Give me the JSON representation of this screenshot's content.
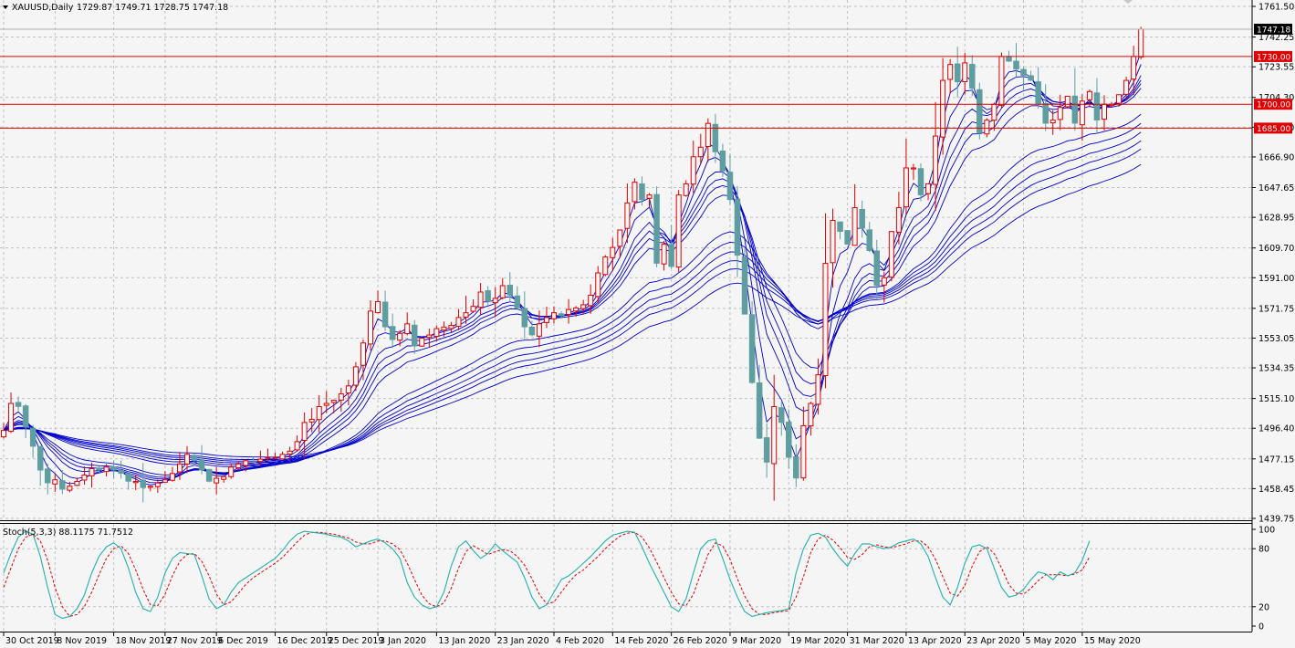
{
  "chart_data": [
    {
      "type": "candlestick",
      "symbol_header": "XAUUSD,Daily",
      "ohlc_header": "1729.87 1749.71 1728.75 1747.18",
      "ylim": [
        1439.75,
        1761.5
      ],
      "y_ticks": [
        1761.5,
        1742.25,
        1723.55,
        1704.3,
        1685.6,
        1666.9,
        1647.65,
        1628.95,
        1609.7,
        1591.0,
        1571.75,
        1553.05,
        1534.35,
        1515.1,
        1496.4,
        1477.15,
        1458.45,
        1439.75
      ],
      "y_tick_labels": [
        "1761.50",
        "1742.25",
        "1723.55",
        "1704.30",
        "1685.60",
        "1666.90",
        "1647.65",
        "1628.95",
        "1609.70",
        "1591.00",
        "1571.75",
        "1553.05",
        "1534.35",
        "1515.10",
        "1496.40",
        "1477.15",
        "1458.45",
        "1439.75"
      ],
      "x_tick_labels": [
        "30 Oct 2019",
        "8 Nov 2019",
        "18 Nov 2019",
        "27 Nov 2019",
        "6 Dec 2019",
        "16 Dec 2019",
        "25 Dec 2019",
        "3 Jan 2020",
        "13 Jan 2020",
        "23 Jan 2020",
        "4 Feb 2020",
        "14 Feb 2020",
        "26 Feb 2020",
        "9 Mar 2020",
        "19 Mar 2020",
        "31 Mar 2020",
        "13 Apr 2020",
        "23 Apr 2020",
        "5 May 2020",
        "15 May 2020"
      ],
      "x_tick_bars": [
        0,
        7,
        15,
        22,
        29,
        37,
        44,
        51,
        59,
        67,
        75,
        83,
        91,
        99,
        107,
        115,
        123,
        131,
        139,
        147
      ],
      "horizontal_levels": [
        {
          "value": 1730.0,
          "label": "1730.00",
          "color": "#e00000"
        },
        {
          "value": 1700.0,
          "label": "1700.00",
          "color": "#e00000"
        },
        {
          "value": 1685.0,
          "label": "1685.00",
          "color": "#e00000"
        }
      ],
      "current_price": {
        "value": 1747.18,
        "label": "1747.18"
      },
      "bull_color": "#e00000",
      "bear_color": "#5f9ea0",
      "ma_color": "#0000cc",
      "ma_periods": [
        3,
        5,
        8,
        10,
        12,
        15,
        30,
        35,
        40,
        45,
        50,
        60
      ],
      "close": [
        1495,
        1512,
        1510,
        1497,
        1485,
        1470,
        1462,
        1464,
        1458,
        1460,
        1463,
        1467,
        1471,
        1470,
        1472,
        1470,
        1468,
        1463,
        1463,
        1459,
        1460,
        1462,
        1464,
        1468,
        1474,
        1480,
        1476,
        1470,
        1463,
        1465,
        1466,
        1472,
        1474,
        1476,
        1475,
        1477,
        1478,
        1478,
        1480,
        1482,
        1488,
        1500,
        1502,
        1510,
        1512,
        1514,
        1518,
        1523,
        1535,
        1550,
        1570,
        1576,
        1560,
        1552,
        1556,
        1562,
        1548,
        1553,
        1555,
        1559,
        1560,
        1561,
        1566,
        1569,
        1573,
        1582,
        1576,
        1578,
        1586,
        1580,
        1572,
        1560,
        1555,
        1562,
        1566,
        1569,
        1567,
        1571,
        1572,
        1574,
        1580,
        1594,
        1604,
        1610,
        1621,
        1638,
        1651,
        1640,
        1643,
        1600,
        1612,
        1598,
        1643,
        1650,
        1667,
        1673,
        1688,
        1670,
        1658,
        1640,
        1605,
        1568,
        1525,
        1490,
        1475,
        1510,
        1500,
        1478,
        1465,
        1498,
        1512,
        1530,
        1600,
        1627,
        1620,
        1612,
        1635,
        1622,
        1608,
        1586,
        1591,
        1620,
        1635,
        1660,
        1660,
        1643,
        1650,
        1680,
        1715,
        1725,
        1714,
        1726,
        1710,
        1682,
        1690,
        1700,
        1730,
        1727,
        1722,
        1718,
        1715,
        1700,
        1688,
        1690,
        1698,
        1705,
        1688,
        1702,
        1708,
        1690,
        1700,
        1700,
        1706,
        1715,
        1730,
        1747.18
      ],
      "stoch": {
        "label": "Stoch(5,3,3) 88.1175 71.7512",
        "ylim": [
          0,
          100
        ],
        "y_ticks": [
          0,
          20,
          80,
          100
        ],
        "y_tick_labels": [
          "0",
          "20",
          "80",
          "100"
        ],
        "main_color": "#20b2aa",
        "signal_color": "#e00000",
        "main_values": [
          55,
          75,
          92,
          98,
          95,
          72,
          40,
          12,
          8,
          10,
          18,
          32,
          55,
          72,
          82,
          86,
          80,
          60,
          35,
          18,
          15,
          30,
          55,
          70,
          76,
          75,
          74,
          52,
          28,
          18,
          22,
          35,
          45,
          50,
          55,
          60,
          65,
          70,
          78,
          88,
          95,
          98,
          97,
          96,
          95,
          93,
          92,
          88,
          82,
          85,
          88,
          90,
          86,
          80,
          70,
          45,
          30,
          22,
          18,
          20,
          35,
          62,
          82,
          88,
          78,
          70,
          75,
          85,
          78,
          72,
          66,
          50,
          30,
          18,
          22,
          35,
          48,
          52,
          58,
          65,
          72,
          80,
          88,
          94,
          96,
          98,
          97,
          82,
          65,
          50,
          35,
          20,
          15,
          28,
          55,
          80,
          88,
          90,
          70,
          48,
          30,
          15,
          10,
          12,
          14,
          15,
          16,
          18,
          55,
          80,
          94,
          96,
          92,
          80,
          70,
          62,
          75,
          85,
          85,
          82,
          80,
          82,
          86,
          88,
          90,
          85,
          72,
          50,
          30,
          22,
          40,
          65,
          82,
          84,
          80,
          60,
          40,
          30,
          32,
          38,
          48,
          56,
          54,
          48,
          56,
          52,
          55,
          68,
          88.1175
        ],
        "signal_values": [
          40,
          60,
          80,
          92,
          95,
          88,
          68,
          40,
          20,
          10,
          12,
          20,
          35,
          53,
          70,
          80,
          83,
          75,
          58,
          38,
          22,
          21,
          33,
          52,
          67,
          74,
          75,
          67,
          52,
          33,
          22,
          25,
          34,
          43,
          50,
          55,
          60,
          65,
          71,
          79,
          87,
          94,
          97,
          97,
          96,
          95,
          93,
          91,
          87,
          85,
          85,
          88,
          88,
          85,
          79,
          65,
          48,
          32,
          23,
          20,
          24,
          39,
          60,
          77,
          83,
          79,
          74,
          77,
          79,
          78,
          72,
          63,
          49,
          33,
          23,
          25,
          35,
          45,
          53,
          58,
          65,
          72,
          80,
          87,
          93,
          96,
          97,
          92,
          81,
          66,
          50,
          35,
          23,
          21,
          33,
          54,
          74,
          86,
          83,
          69,
          49,
          31,
          18,
          12,
          12,
          14,
          15,
          16,
          30,
          51,
          76,
          90,
          94,
          89,
          81,
          71,
          69,
          74,
          82,
          84,
          82,
          81,
          83,
          85,
          88,
          88,
          82,
          69,
          51,
          34,
          31,
          42,
          62,
          77,
          82,
          75,
          60,
          43,
          34,
          33,
          39,
          47,
          53,
          53,
          53,
          52,
          54,
          58,
          71.7512
        ]
      }
    }
  ]
}
